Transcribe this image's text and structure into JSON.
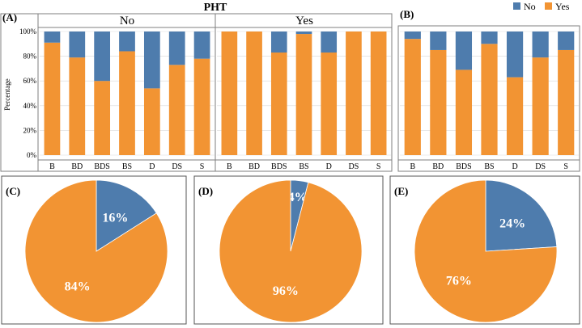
{
  "colors": {
    "no": "#4e7cad",
    "yes": "#f29433",
    "border": "#7f7f7f",
    "grid": "#d9d9d9"
  },
  "chart_data": [
    {
      "id": "A",
      "panel_label": "(A)",
      "title": "PHT",
      "type": "bar",
      "stacked": "percent",
      "ylabel": "Percentage",
      "yticks": [
        "0%",
        "20%",
        "40%",
        "60%",
        "80%",
        "100%"
      ],
      "ylim": [
        0,
        100
      ],
      "grid": true,
      "facets": [
        {
          "label": "No",
          "categories": [
            "B",
            "BD",
            "BDS",
            "BS",
            "D",
            "DS",
            "S"
          ],
          "series": [
            {
              "name": "Yes",
              "values": [
                91,
                79,
                60,
                84,
                54,
                73,
                78
              ]
            },
            {
              "name": "No",
              "values": [
                9,
                21,
                40,
                16,
                46,
                27,
                22
              ]
            }
          ]
        },
        {
          "label": "Yes",
          "categories": [
            "B",
            "BD",
            "BDS",
            "BS",
            "D",
            "DS",
            "S"
          ],
          "series": [
            {
              "name": "Yes",
              "values": [
                100,
                100,
                83,
                98,
                83,
                100,
                100
              ]
            },
            {
              "name": "No",
              "values": [
                0,
                0,
                17,
                2,
                17,
                0,
                0
              ]
            }
          ]
        }
      ]
    },
    {
      "id": "B",
      "panel_label": "(B)",
      "type": "bar",
      "stacked": "percent",
      "ylim": [
        0,
        100
      ],
      "grid": true,
      "legend": {
        "position": "top-right",
        "entries": [
          "No",
          "Yes"
        ]
      },
      "categories": [
        "B",
        "BD",
        "BDS",
        "BS",
        "D",
        "DS",
        "S"
      ],
      "series": [
        {
          "name": "Yes",
          "values": [
            94,
            85,
            69,
            90,
            63,
            79,
            85
          ]
        },
        {
          "name": "No",
          "values": [
            6,
            15,
            31,
            10,
            37,
            21,
            15
          ]
        }
      ]
    },
    {
      "id": "C",
      "panel_label": "(C)",
      "type": "pie",
      "slices": [
        {
          "name": "No",
          "value": 16,
          "label": "16%"
        },
        {
          "name": "Yes",
          "value": 84,
          "label": "84%"
        }
      ]
    },
    {
      "id": "D",
      "panel_label": "(D)",
      "type": "pie",
      "slices": [
        {
          "name": "No",
          "value": 4,
          "label": "4%"
        },
        {
          "name": "Yes",
          "value": 96,
          "label": "96%"
        }
      ]
    },
    {
      "id": "E",
      "panel_label": "(E)",
      "type": "pie",
      "slices": [
        {
          "name": "No",
          "value": 24,
          "label": "24%"
        },
        {
          "name": "Yes",
          "value": 76,
          "label": "76%"
        }
      ]
    }
  ]
}
